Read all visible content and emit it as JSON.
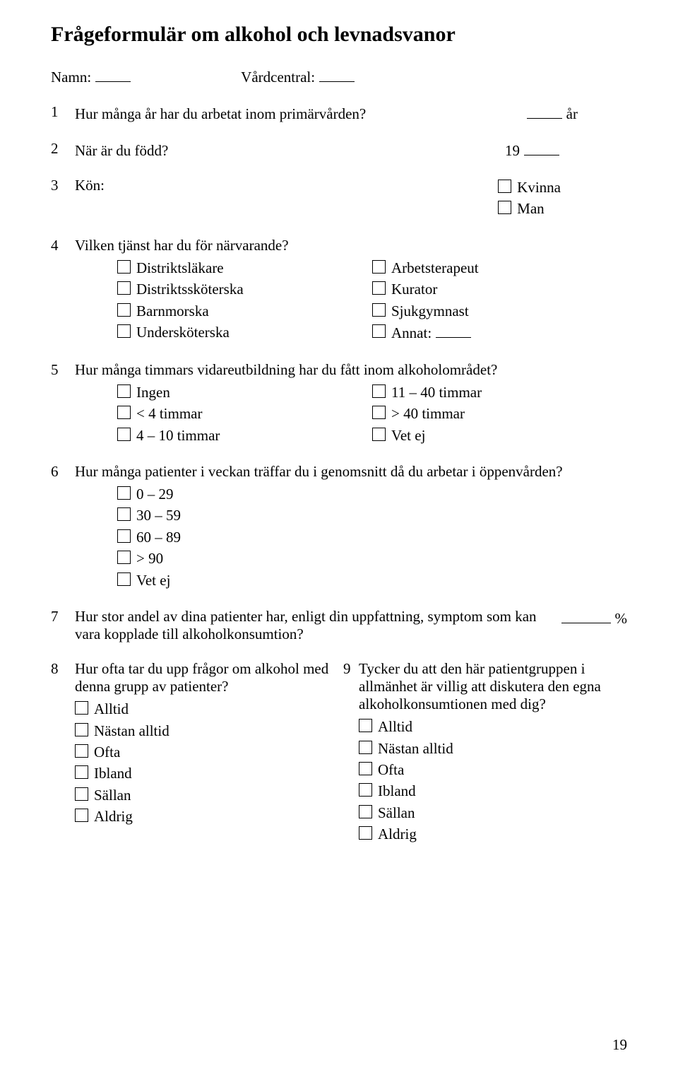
{
  "title": "Frågeformulär om alkohol och levnadsvanor",
  "header": {
    "name_label": "Namn:",
    "center_label": "Vårdcentral:"
  },
  "q1": {
    "num": "1",
    "text": "Hur många år har du arbetat inom primärvården?",
    "unit": "år"
  },
  "q2": {
    "num": "2",
    "text": "När är du född?",
    "prefix": "19"
  },
  "q3": {
    "num": "3",
    "text": "Kön:",
    "opt_a": "Kvinna",
    "opt_b": "Man"
  },
  "q4": {
    "num": "4",
    "text": "Vilken tjänst har du för närvarande?",
    "left": {
      "a": "Distriktsläkare",
      "b": "Distriktssköterska",
      "c": "Barnmorska",
      "d": "Undersköterska"
    },
    "right": {
      "a": "Arbetsterapeut",
      "b": "Kurator",
      "c": "Sjukgymnast",
      "d": "Annat:"
    }
  },
  "q5": {
    "num": "5",
    "text": "Hur många timmars vidareutbildning har du fått inom alkoholområdet?",
    "left": {
      "a": "Ingen",
      "b": "< 4 timmar",
      "c": "4 – 10 timmar"
    },
    "right": {
      "a": "11 – 40 timmar",
      "b": "> 40 timmar",
      "c": "Vet ej"
    }
  },
  "q6": {
    "num": "6",
    "text": "Hur många patienter i veckan träffar du i genomsnitt då du arbetar i öppenvården?",
    "opts": {
      "a": "0 – 29",
      "b": "30 – 59",
      "c": "60 – 89",
      "d": "> 90",
      "e": "Vet ej"
    }
  },
  "q7": {
    "num": "7",
    "text": "Hur stor andel av dina patienter har, enligt din uppfattning, symptom som kan vara kopplade till alkoholkonsumtion?",
    "unit": "%"
  },
  "q8": {
    "num": "8",
    "text": "Hur ofta tar du upp frågor om alkohol med denna grupp av patienter?",
    "opts": {
      "a": "Alltid",
      "b": "Nästan alltid",
      "c": "Ofta",
      "d": "Ibland",
      "e": "Sällan",
      "f": "Aldrig"
    }
  },
  "q9": {
    "num": "9",
    "text": "Tycker du att den här patientgruppen i allmänhet är villig att diskutera den egna alkoholkonsumtionen med dig?",
    "opts": {
      "a": "Alltid",
      "b": "Nästan alltid",
      "c": "Ofta",
      "d": "Ibland",
      "e": "Sällan",
      "f": "Aldrig"
    }
  },
  "page_number": "19"
}
